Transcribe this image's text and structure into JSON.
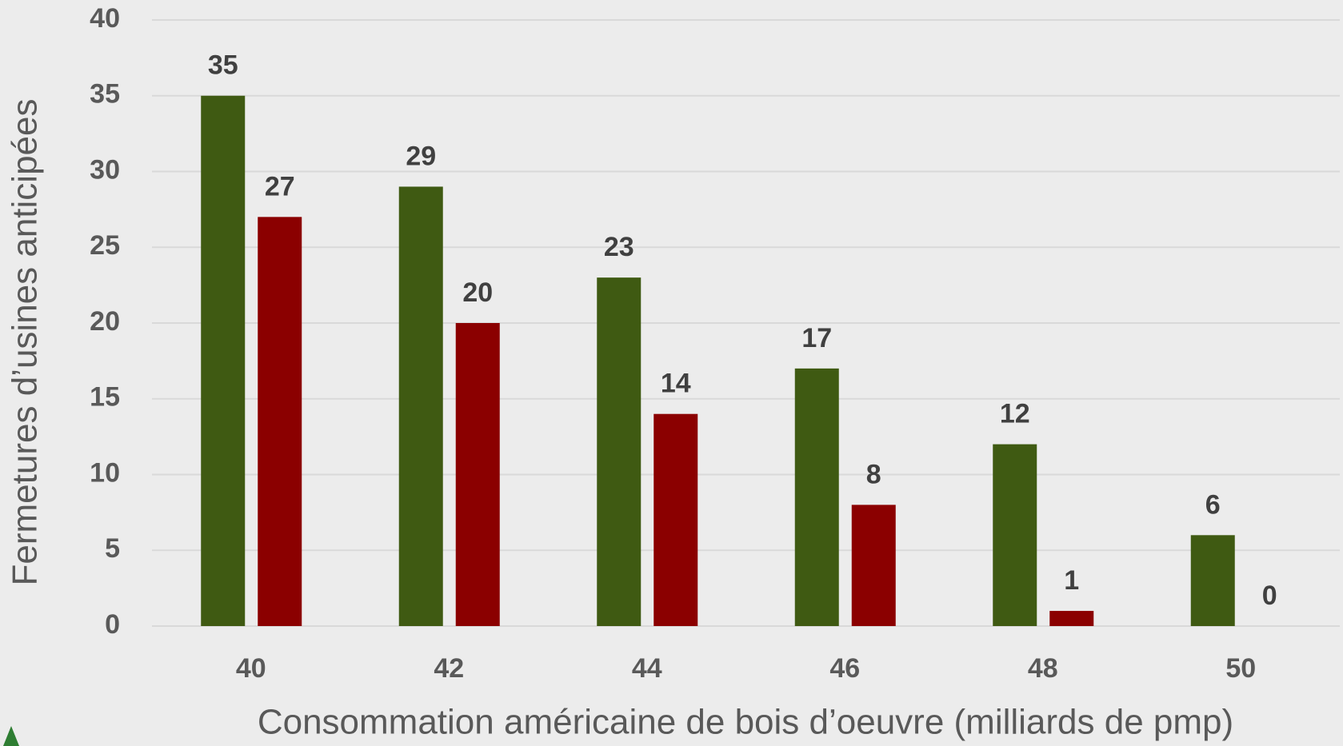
{
  "chart_data": {
    "type": "bar",
    "x_label": "Consommation américaine de bois d’oeuvre (milliards de pmp)",
    "y_label": "Fermetures d’usines anticipées",
    "categories": [
      "40",
      "42",
      "44",
      "46",
      "48",
      "50"
    ],
    "series": [
      {
        "color": "#3f5a12",
        "values": [
          35,
          29,
          23,
          17,
          12,
          6
        ]
      },
      {
        "color": "#8b0000",
        "values": [
          27,
          20,
          14,
          8,
          1,
          0
        ]
      }
    ],
    "ylim": [
      0,
      40
    ],
    "yticks": [
      0,
      5,
      10,
      15,
      20,
      25,
      30,
      35,
      40
    ],
    "grid": true
  }
}
